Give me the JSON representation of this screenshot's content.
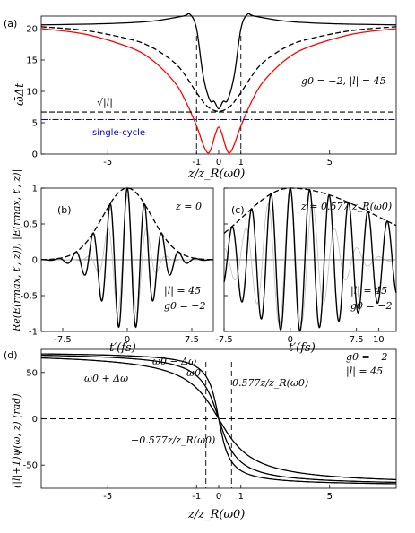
{
  "figure_labels": {
    "a": "(a)",
    "b": "(b)",
    "c": "(c)",
    "d": "(d)"
  },
  "chart_data": [
    {
      "panel": "(a)",
      "type": "line",
      "xlabel": "z/z_R(ω0)",
      "ylabel": "ω̄Δt",
      "xlim": [
        -8,
        8
      ],
      "ylim": [
        0,
        22
      ],
      "x_ticks": [
        "-5",
        "-1",
        "0",
        "1",
        "5"
      ],
      "y_ticks": [
        "0",
        "5",
        "10",
        "15",
        "20"
      ],
      "annotations": {
        "params": "g0 = −2, |l| = 45",
        "sqrt_label": "√|l|",
        "single_cycle": "single-cycle"
      },
      "colors": {
        "red": "#ff0000",
        "blue": "#0000cc",
        "black": "#000000"
      },
      "series": [
        {
          "style": "solid-black",
          "x": [
            -8,
            -5,
            -3,
            -1.6,
            -1.3,
            -1,
            -0.7,
            -0.4,
            -0.2,
            0,
            0.2,
            0.4,
            0.7,
            1,
            1.3,
            1.6,
            3,
            5,
            8
          ],
          "y": [
            20.6,
            20.8,
            21.2,
            22.0,
            22.3,
            20.0,
            12.5,
            8.6,
            8.4,
            7.2,
            8.4,
            8.6,
            12.5,
            20.0,
            22.3,
            22.0,
            21.2,
            20.8,
            20.6
          ]
        },
        {
          "style": "dashed-black",
          "x": [
            -8,
            -6,
            -4,
            -3,
            -2,
            -1.5,
            -1,
            -0.6,
            -0.3,
            0,
            0.3,
            0.6,
            1,
            1.5,
            2,
            3,
            4,
            6,
            8
          ],
          "y": [
            20.3,
            19.7,
            18.3,
            17.0,
            14.6,
            12.5,
            9.8,
            7.9,
            7.1,
            6.8,
            7.1,
            7.9,
            9.8,
            12.5,
            14.6,
            17.0,
            18.3,
            19.7,
            20.3
          ]
        },
        {
          "style": "solid-red",
          "x": [
            -8,
            -6,
            -4,
            -3,
            -2,
            -1.5,
            -1,
            -0.7,
            -0.5,
            -0.35,
            -0.15,
            0,
            0.15,
            0.35,
            0.5,
            0.7,
            1,
            1.5,
            2,
            3,
            4,
            6,
            8
          ],
          "y": [
            20.0,
            19.1,
            17.0,
            15.0,
            11.5,
            8.5,
            4.5,
            1.5,
            0.2,
            0.8,
            3.2,
            4.3,
            3.2,
            0.8,
            0.2,
            1.5,
            4.5,
            8.5,
            11.5,
            15.0,
            17.0,
            19.1,
            20.0
          ]
        },
        {
          "style": "dashed-black-hline",
          "x": [
            -8,
            8
          ],
          "y": [
            6.7,
            6.7
          ]
        },
        {
          "style": "dashdot-blue-hline",
          "x": [
            -8,
            8
          ],
          "y": [
            5.5,
            5.5
          ]
        }
      ]
    },
    {
      "panel": "(b)",
      "type": "line",
      "xlabel": "t′(fs)",
      "ylabel": "Re(E(rmax, t′, z)), |E(rmax, t′, z)|",
      "xlim": [
        -10,
        10
      ],
      "ylim": [
        -1,
        1
      ],
      "x_ticks": [
        "-7.5",
        "0",
        "7.5"
      ],
      "y_ticks": [
        "-1",
        "-0.5",
        "0",
        "0.5",
        "1"
      ],
      "annotations": {
        "z": "z = 0",
        "l": "|l| = 45",
        "g": "g0 = −2"
      },
      "envelope_width_fs": 4.2,
      "carrier_period_fs": 2.0
    },
    {
      "panel": "(c)",
      "type": "line",
      "xlabel": "t′(fs)",
      "xlim": [
        -7.5,
        12
      ],
      "ylim": [
        -1,
        1
      ],
      "x_ticks": [
        "-7.5",
        "0",
        "7.5",
        "10"
      ],
      "annotations": {
        "z": "z = 0.577 z_R(ω0)",
        "l": "|l| = 45",
        "g": "g0 = −2"
      },
      "envelope_width_fs": 9.0,
      "carrier_period_fs": 2.2
    },
    {
      "panel": "(d)",
      "type": "line",
      "xlabel": "z/z_R(ω0)",
      "ylabel": "(|l|+1)ψ(ω, z) (rad)",
      "xlim": [
        -8,
        8
      ],
      "ylim": [
        -75,
        75
      ],
      "x_ticks": [
        "-5",
        "-1",
        "0",
        "1",
        "5"
      ],
      "y_ticks": [
        "-50",
        "0",
        "50"
      ],
      "annotations": {
        "params_g": "g0 = −2",
        "params_l": "|l| = 45",
        "w_minus": "ω0 − Δω",
        "w0": "ω0",
        "w_plus": "ω0 + Δω",
        "pos": "0.577z/z_R(ω0)",
        "neg": "−0.577z/z_R(ω0)"
      },
      "series": [
        {
          "name": "ω0 − Δω",
          "amplitude": 72.2,
          "scale": 0.55
        },
        {
          "name": "ω0",
          "amplitude": 72.2,
          "scale": 1.0
        },
        {
          "name": "ω0 + Δω",
          "amplitude": 72.2,
          "scale": 1.7
        }
      ]
    }
  ]
}
